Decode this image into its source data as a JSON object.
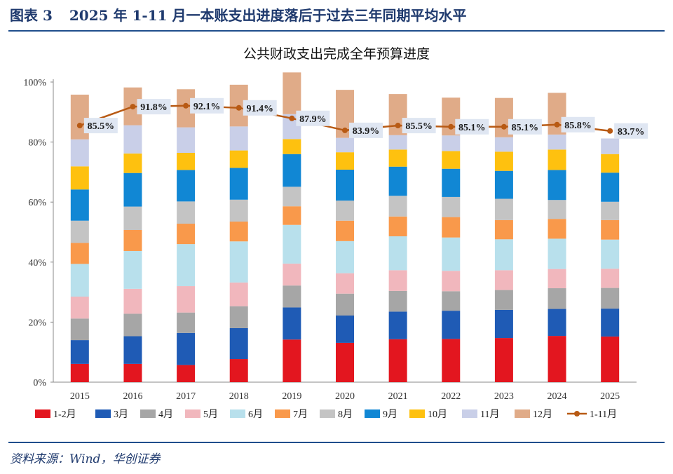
{
  "header": {
    "figure_label": "图表 3",
    "title": "2025 年 1-11 月一本账支出进度落后于过去三年同期平均水平"
  },
  "source": "资料来源：Wind，华创证券",
  "colors": {
    "1-2月": "#e3161f",
    "3月": "#1f5bb5",
    "4月": "#a6a6a6",
    "5月": "#f1b7bd",
    "6月": "#b8e0ec",
    "7月": "#f9994b",
    "8月": "#c4c4c4",
    "9月": "#1187d4",
    "10月": "#fec10f",
    "11月": "#c9cfe8",
    "12月": "#e0ab88",
    "1-11月": "#b85a14"
  },
  "chart_data": {
    "type": "bar",
    "stacked": true,
    "title": "公共财政支出完成全年预算进度",
    "xlabel": "",
    "ylabel": "",
    "ylim": [
      0,
      100
    ],
    "y_ticks": [
      "0%",
      "20%",
      "40%",
      "60%",
      "80%",
      "100%"
    ],
    "legend_position": "bottom",
    "categories": [
      "2015",
      "2016",
      "2017",
      "2018",
      "2019",
      "2020",
      "2021",
      "2022",
      "2023",
      "2024",
      "2025"
    ],
    "series": [
      {
        "name": "1-2月",
        "values": [
          6.1,
          6.1,
          5.7,
          7.7,
          14.2,
          13.1,
          14.3,
          14.4,
          14.7,
          15.4,
          15.2
        ]
      },
      {
        "name": "3月",
        "values": [
          7.9,
          9.2,
          10.7,
          10.3,
          10.7,
          9.1,
          9.2,
          9.4,
          9.4,
          9.0,
          9.3
        ]
      },
      {
        "name": "4月",
        "values": [
          7.2,
          7.5,
          6.8,
          7.3,
          7.3,
          7.3,
          6.9,
          6.5,
          6.6,
          6.9,
          6.9
        ]
      },
      {
        "name": "5月",
        "values": [
          7.3,
          8.3,
          8.8,
          7.9,
          7.3,
          6.8,
          6.9,
          6.8,
          6.6,
          6.4,
          6.4
        ]
      },
      {
        "name": "6月",
        "values": [
          10.9,
          12.6,
          14.0,
          13.7,
          12.9,
          10.7,
          11.3,
          11.1,
          10.3,
          10.1,
          9.7
        ]
      },
      {
        "name": "7月",
        "values": [
          7.0,
          7.0,
          6.8,
          6.6,
          6.2,
          6.8,
          6.6,
          6.8,
          6.4,
          6.6,
          6.5
        ]
      },
      {
        "name": "8月",
        "values": [
          7.4,
          7.8,
          7.4,
          7.3,
          6.5,
          6.7,
          6.9,
          6.7,
          7.1,
          6.3,
          6.1
        ]
      },
      {
        "name": "9月",
        "values": [
          10.4,
          11.2,
          10.5,
          10.6,
          10.9,
          10.3,
          9.7,
          9.4,
          9.3,
          10.0,
          9.7
        ]
      },
      {
        "name": "10月",
        "values": [
          7.7,
          6.5,
          5.7,
          5.8,
          5.0,
          5.8,
          5.7,
          5.9,
          6.4,
          6.8,
          6.2
        ]
      },
      {
        "name": "11月",
        "values": [
          9.0,
          9.4,
          8.5,
          8.0,
          8.3,
          4.8,
          4.8,
          5.2,
          4.8,
          5.0,
          5.2
        ]
      },
      {
        "name": "12月",
        "values": [
          14.9,
          12.6,
          12.7,
          13.9,
          13.9,
          16.0,
          13.7,
          12.6,
          13.1,
          13.9,
          0
        ]
      }
    ],
    "line": {
      "name": "1-11月",
      "values": [
        85.5,
        91.8,
        92.1,
        91.4,
        87.9,
        83.9,
        85.5,
        85.1,
        85.1,
        85.8,
        83.7
      ],
      "labels": [
        "85.5%",
        "91.8%",
        "92.1%",
        "91.4%",
        "87.9%",
        "83.9%",
        "85.5%",
        "85.1%",
        "85.1%",
        "85.8%",
        "83.7%"
      ]
    },
    "legend": [
      "1-2月",
      "3月",
      "4月",
      "5月",
      "6月",
      "7月",
      "8月",
      "9月",
      "10月",
      "11月",
      "12月",
      "1-11月"
    ]
  }
}
